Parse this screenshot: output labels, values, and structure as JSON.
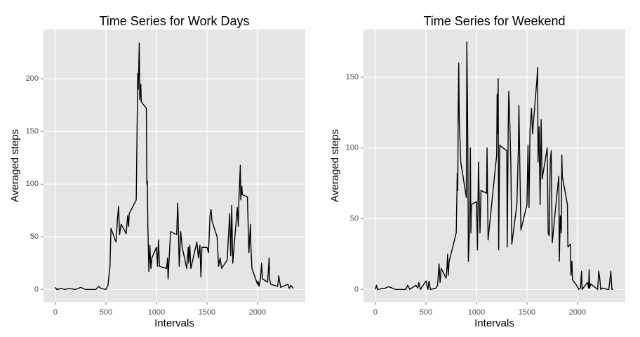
{
  "chart_data": [
    {
      "type": "line",
      "title": "Time Series for Work Days",
      "x_label": "Intervals",
      "y_label": "Averaged steps",
      "x": [
        0,
        10,
        20,
        30,
        50,
        100,
        130,
        200,
        250,
        300,
        400,
        430,
        450,
        500,
        520,
        540,
        550,
        600,
        615,
        625,
        635,
        650,
        700,
        715,
        725,
        730,
        800,
        815,
        820,
        830,
        835,
        845,
        850,
        900,
        905,
        910,
        915,
        925,
        935,
        945,
        955,
        1000,
        1010,
        1020,
        1030,
        1100,
        1110,
        1115,
        1130,
        1140,
        1200,
        1210,
        1215,
        1225,
        1240,
        1255,
        1300,
        1315,
        1320,
        1330,
        1340,
        1400,
        1415,
        1430,
        1440,
        1450,
        1500,
        1515,
        1530,
        1540,
        1550,
        1600,
        1615,
        1630,
        1645,
        1700,
        1715,
        1725,
        1735,
        1745,
        1755,
        1800,
        1810,
        1815,
        1830,
        1835,
        1845,
        1850,
        1900,
        1915,
        1930,
        1935,
        1945,
        2000,
        2005,
        2015,
        2030,
        2040,
        2050,
        2100,
        2115,
        2120,
        2130,
        2200,
        2210,
        2215,
        2230,
        2300,
        2315,
        2330,
        2345,
        2355
      ],
      "series": [
        {
          "color": "#000000",
          "values": [
            2,
            0,
            1,
            0,
            1,
            0,
            1,
            0,
            2,
            0,
            0,
            3,
            1,
            0,
            4,
            22,
            58,
            45,
            68,
            79,
            52,
            62,
            53,
            70,
            60,
            72,
            85,
            205,
            190,
            234,
            180,
            195,
            178,
            172,
            100,
            103,
            60,
            17,
            42,
            20,
            30,
            40,
            22,
            47,
            22,
            20,
            30,
            10,
            37,
            55,
            52,
            82,
            68,
            22,
            55,
            40,
            20,
            40,
            25,
            42,
            20,
            45,
            30,
            42,
            12,
            40,
            40,
            35,
            70,
            76,
            65,
            50,
            22,
            30,
            20,
            28,
            55,
            72,
            32,
            80,
            25,
            78,
            60,
            82,
            118,
            85,
            98,
            90,
            88,
            35,
            62,
            40,
            20,
            5,
            8,
            3,
            10,
            25,
            10,
            7,
            30,
            10,
            5,
            3,
            13,
            10,
            2,
            5,
            1,
            4,
            2,
            1
          ]
        }
      ],
      "xlim": [
        -117.75,
        2472.75
      ],
      "ylim": [
        -11.75,
        246.75
      ],
      "xticks": [
        0,
        500,
        1000,
        1500,
        2000
      ],
      "yticks": [
        0,
        50,
        100,
        150,
        200
      ],
      "grid": true
    },
    {
      "type": "line",
      "title": "Time Series for Weekend",
      "x_label": "Intervals",
      "y_label": "Averaged steps",
      "x": [
        0,
        10,
        20,
        100,
        130,
        200,
        300,
        320,
        340,
        400,
        420,
        430,
        445,
        500,
        510,
        520,
        530,
        545,
        600,
        615,
        630,
        640,
        645,
        650,
        700,
        710,
        715,
        720,
        730,
        800,
        810,
        815,
        820,
        825,
        830,
        845,
        900,
        905,
        910,
        915,
        920,
        925,
        930,
        935,
        940,
        945,
        950,
        1000,
        1010,
        1020,
        1035,
        1045,
        1100,
        1105,
        1115,
        1200,
        1205,
        1210,
        1215,
        1220,
        1230,
        1300,
        1305,
        1315,
        1320,
        1330,
        1340,
        1350,
        1400,
        1415,
        1420,
        1430,
        1440,
        1500,
        1510,
        1520,
        1530,
        1545,
        1555,
        1600,
        1605,
        1610,
        1620,
        1630,
        1640,
        1650,
        1700,
        1710,
        1720,
        1730,
        1740,
        1750,
        1800,
        1815,
        1820,
        1830,
        1840,
        1845,
        1850,
        1900,
        1905,
        1930,
        1935,
        1945,
        1950,
        2000,
        2010,
        2030,
        2040,
        2045,
        2100,
        2110,
        2115,
        2120,
        2130,
        2200,
        2210,
        2220,
        2230,
        2245,
        2300,
        2310,
        2330,
        2340,
        2355
      ],
      "series": [
        {
          "color": "#000000",
          "values": [
            0,
            3,
            0,
            1,
            2,
            0,
            0,
            3,
            0,
            3,
            1,
            5,
            0,
            6,
            3,
            0,
            6,
            0,
            1,
            3,
            18,
            5,
            9,
            15,
            8,
            18,
            25,
            10,
            20,
            40,
            82,
            70,
            130,
            160,
            120,
            90,
            65,
            175,
            140,
            100,
            20,
            30,
            40,
            60,
            100,
            40,
            60,
            62,
            28,
            90,
            40,
            70,
            68,
            100,
            35,
            95,
            138,
            110,
            149,
            28,
            102,
            98,
            30,
            120,
            140,
            118,
            90,
            32,
            60,
            100,
            130,
            85,
            42,
            60,
            102,
            58,
            112,
            128,
            110,
            150,
            157,
            90,
            115,
            60,
            120,
            78,
            100,
            40,
            38,
            90,
            98,
            33,
            70,
            80,
            20,
            52,
            40,
            95,
            80,
            60,
            30,
            32,
            10,
            20,
            7,
            2,
            0,
            1,
            13,
            0,
            5,
            1,
            14,
            1,
            4,
            0,
            13,
            8,
            0,
            1,
            0,
            0,
            13,
            0,
            0
          ]
        }
      ],
      "xlim": [
        -117.75,
        2472.75
      ],
      "ylim": [
        -8.75,
        183.75
      ],
      "xticks": [
        0,
        500,
        1000,
        1500,
        2000
      ],
      "yticks": [
        0,
        50,
        100,
        150
      ],
      "grid": true
    }
  ]
}
